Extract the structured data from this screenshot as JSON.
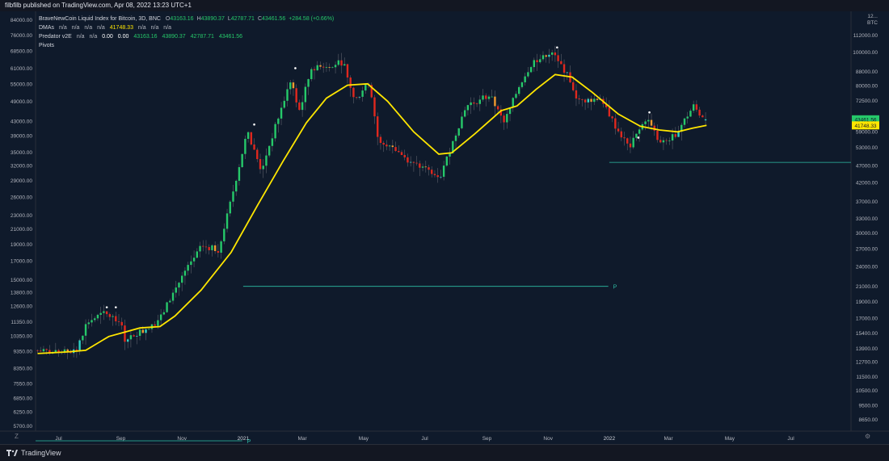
{
  "publisher_line": "filbfilb published on TradingView.com, Apr 08, 2022 13:23 UTC+1",
  "brand": "TradingView",
  "currency": "BTC",
  "legend": {
    "title": "BraveNewCoin Liquid Index for Bitcoin, 3D, BNC",
    "ohlc": {
      "o_label": "O",
      "o": "43163.16",
      "h_label": "H",
      "h": "43890.37",
      "l_label": "L",
      "l": "42787.71",
      "c_label": "C",
      "c": "43461.56",
      "change": "+284.58 (+0.66%)"
    },
    "dmas": {
      "label": "DMAs",
      "v1": "n/a",
      "v2": "n/a",
      "v3": "n/a",
      "v4": "n/a",
      "value": "41748.33",
      "v5": "n/a",
      "v6": "n/a",
      "v7": "n/a"
    },
    "predator": {
      "label": "Predator v2E",
      "v1": "n/a",
      "v2": "n/a",
      "z1": "0.00",
      "z2": "0.00",
      "o": "43163.16",
      "h": "43890.37",
      "l": "42787.71",
      "c": "43461.56"
    },
    "pivots": "Pivots"
  },
  "chart_data": {
    "type": "candlestick",
    "title": "BraveNewCoin Liquid Index for Bitcoin, 3D, BNC",
    "y_scale": "log",
    "x_range": [
      "2020-06-08",
      "2022-08-30"
    ],
    "left_axis": {
      "ticks": [
        84000,
        76000,
        68500,
        61000,
        55000,
        49000,
        43000,
        39000,
        35000,
        32000,
        29000,
        26000,
        23000,
        21000,
        19000,
        17000,
        15000,
        13800,
        12600,
        11350,
        10350,
        9350,
        8350,
        7550,
        6850,
        6250,
        5700
      ],
      "range": [
        5500,
        88000
      ]
    },
    "right_axis": {
      "ticks": [
        112000,
        100000,
        88000,
        80000,
        72500,
        65000,
        59000,
        53000,
        47000,
        42000,
        37000,
        33000,
        30000,
        27000,
        24000,
        21000,
        19000,
        17000,
        15400,
        13900,
        12700,
        11500,
        10500,
        9500,
        8650
      ],
      "top_tick": "12...",
      "range": [
        8000,
        130000
      ]
    },
    "x_ticks": [
      {
        "label": "Jul",
        "date": "2020-07-01"
      },
      {
        "label": "Sep",
        "date": "2020-09-01"
      },
      {
        "label": "Nov",
        "date": "2020-11-01"
      },
      {
        "label": "2021",
        "date": "2021-01-01"
      },
      {
        "label": "Mar",
        "date": "2021-03-01"
      },
      {
        "label": "May",
        "date": "2021-05-01"
      },
      {
        "label": "Jul",
        "date": "2021-07-01"
      },
      {
        "label": "Sep",
        "date": "2021-09-01"
      },
      {
        "label": "Nov",
        "date": "2021-11-01"
      },
      {
        "label": "2022",
        "date": "2022-01-01"
      },
      {
        "label": "Mar",
        "date": "2022-03-01"
      },
      {
        "label": "May",
        "date": "2022-05-01"
      },
      {
        "label": "Jul",
        "date": "2022-07-01"
      }
    ],
    "price_path": [
      [
        "2020-06-10",
        9400
      ],
      [
        "2020-07-01",
        9250
      ],
      [
        "2020-07-21",
        9300
      ],
      [
        "2020-08-01",
        11300
      ],
      [
        "2020-08-17",
        12000
      ],
      [
        "2020-09-03",
        11500
      ],
      [
        "2020-09-08",
        10100
      ],
      [
        "2020-09-25",
        10700
      ],
      [
        "2020-10-12",
        11400
      ],
      [
        "2020-10-21",
        12900
      ],
      [
        "2020-11-05",
        15500
      ],
      [
        "2020-11-24",
        18800
      ],
      [
        "2020-12-10",
        18300
      ],
      [
        "2020-12-20",
        23500
      ],
      [
        "2021-01-08",
        40000
      ],
      [
        "2021-01-22",
        31000
      ],
      [
        "2021-02-08",
        44000
      ],
      [
        "2021-02-21",
        57000
      ],
      [
        "2021-02-28",
        45000
      ],
      [
        "2021-03-13",
        61000
      ],
      [
        "2021-04-14",
        63500
      ],
      [
        "2021-04-25",
        49000
      ],
      [
        "2021-05-10",
        56000
      ],
      [
        "2021-05-19",
        37000
      ],
      [
        "2021-06-01",
        36500
      ],
      [
        "2021-06-21",
        32500
      ],
      [
        "2021-07-20",
        30000
      ],
      [
        "2021-08-14",
        47500
      ],
      [
        "2021-09-07",
        51000
      ],
      [
        "2021-09-21",
        42500
      ],
      [
        "2021-10-07",
        55000
      ],
      [
        "2021-10-20",
        64000
      ],
      [
        "2021-11-10",
        67000
      ],
      [
        "2021-11-25",
        57000
      ],
      [
        "2021-12-04",
        49000
      ],
      [
        "2021-12-27",
        50000
      ],
      [
        "2022-01-10",
        41500
      ],
      [
        "2022-01-24",
        36000
      ],
      [
        "2022-02-10",
        44000
      ],
      [
        "2022-02-24",
        37000
      ],
      [
        "2022-03-10",
        39000
      ],
      [
        "2022-03-29",
        47500
      ],
      [
        "2022-04-08",
        43461.56
      ]
    ],
    "candle_interval_days": 3,
    "last_candle": {
      "date": "2022-04-08",
      "open": 43163.16,
      "high": 43890.37,
      "low": 42787.71,
      "close": 43461.56
    },
    "series": [
      {
        "name": "DMAs",
        "color": "#ffe600",
        "points": [
          [
            "2020-06-10",
            9200
          ],
          [
            "2020-07-10",
            9300
          ],
          [
            "2020-07-28",
            9400
          ],
          [
            "2020-08-20",
            10300
          ],
          [
            "2020-09-20",
            10900
          ],
          [
            "2020-10-10",
            11000
          ],
          [
            "2020-10-25",
            11800
          ],
          [
            "2020-11-20",
            14000
          ],
          [
            "2020-12-20",
            18000
          ],
          [
            "2021-01-15",
            24500
          ],
          [
            "2021-02-10",
            33000
          ],
          [
            "2021-03-05",
            42500
          ],
          [
            "2021-03-25",
            50000
          ],
          [
            "2021-04-15",
            54500
          ],
          [
            "2021-05-05",
            55000
          ],
          [
            "2021-05-25",
            49000
          ],
          [
            "2021-06-20",
            40000
          ],
          [
            "2021-07-15",
            34500
          ],
          [
            "2021-07-28",
            34800
          ],
          [
            "2021-08-20",
            39500
          ],
          [
            "2021-09-15",
            46000
          ],
          [
            "2021-10-01",
            47500
          ],
          [
            "2021-10-20",
            53000
          ],
          [
            "2021-11-08",
            58500
          ],
          [
            "2021-11-25",
            57500
          ],
          [
            "2021-12-15",
            52000
          ],
          [
            "2022-01-10",
            45000
          ],
          [
            "2022-02-01",
            41500
          ],
          [
            "2022-02-20",
            40500
          ],
          [
            "2022-03-10",
            40000
          ],
          [
            "2022-03-25",
            41000
          ],
          [
            "2022-04-08",
            41748.33
          ]
        ]
      }
    ],
    "pivots": [
      {
        "label": "P",
        "from": "2020-06-08",
        "to": "2020-12-31",
        "right_axis_value": 7500
      },
      {
        "label": "P",
        "from": "2021-01-01",
        "to": "2021-12-31",
        "right_axis_value": 21000
      },
      {
        "label": "P",
        "from": "2022-01-01",
        "to": "2022-08-30",
        "right_axis_value": 48000
      }
    ],
    "markers": [
      [
        "2020-08-18",
        12500
      ],
      [
        "2020-08-27",
        12500
      ],
      [
        "2021-01-12",
        42000
      ],
      [
        "2021-02-22",
        61000
      ],
      [
        "2021-11-10",
        70000
      ],
      [
        "2022-01-30",
        38500
      ],
      [
        "2022-02-10",
        45500
      ]
    ],
    "price_labels": {
      "last_price": {
        "value": "43461.56",
        "color": "#26c96a"
      },
      "dma": {
        "value": "41748.33",
        "color": "#ffe600"
      }
    },
    "colors": {
      "up": "#26c96a",
      "down": "#e0281e",
      "transition": "#f29a2e",
      "cyan": "#2fd3c6",
      "pivot": "#2fbfa6"
    }
  }
}
